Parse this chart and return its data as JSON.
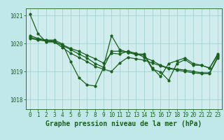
{
  "background_color": "#c0e8e8",
  "plot_bg_color": "#d0ecec",
  "grid_color": "#a0cccc",
  "line_color": "#1a6020",
  "ylim": [
    1017.65,
    1021.25
  ],
  "yticks": [
    1018,
    1019,
    1020,
    1021
  ],
  "xticks": [
    0,
    1,
    2,
    3,
    4,
    5,
    6,
    7,
    8,
    9,
    10,
    11,
    12,
    13,
    14,
    15,
    16,
    17,
    18,
    19,
    20,
    21,
    22,
    23
  ],
  "series": [
    [
      1021.05,
      1020.35,
      1020.05,
      1020.05,
      1019.85,
      1019.65,
      1019.5,
      1019.35,
      1019.18,
      1019.08,
      1019.0,
      1019.3,
      1019.5,
      1019.45,
      1019.4,
      1019.3,
      1019.2,
      1019.1,
      1019.05,
      1019.0,
      1018.95,
      1018.92,
      1018.92,
      1019.48
    ],
    [
      1020.18,
      1020.12,
      1020.08,
      1020.05,
      1019.95,
      1019.82,
      1019.72,
      1019.58,
      1019.45,
      1019.3,
      1019.65,
      1019.62,
      1019.72,
      1019.65,
      1019.5,
      1019.38,
      1019.22,
      1019.12,
      1019.08,
      1019.05,
      1019.0,
      1018.95,
      1018.95,
      1019.52
    ],
    [
      1020.22,
      1020.15,
      1020.1,
      1020.08,
      1019.92,
      1019.78,
      1019.62,
      1019.48,
      1019.28,
      1019.15,
      1020.28,
      1019.78,
      1019.68,
      1019.6,
      1019.58,
      1019.08,
      1018.98,
      1018.68,
      1019.28,
      1019.42,
      1019.22,
      1019.22,
      1019.12,
      1019.58
    ],
    [
      1020.28,
      1020.18,
      1020.12,
      1020.12,
      1019.98,
      1019.35,
      1018.78,
      1018.52,
      1018.48,
      1019.12,
      1019.72,
      1019.72,
      1019.68,
      1019.62,
      1019.62,
      1019.12,
      1018.82,
      1019.28,
      1019.38,
      1019.48,
      1019.28,
      1019.22,
      1019.12,
      1019.62
    ]
  ],
  "marker": "o",
  "markersize": 2.0,
  "linewidth": 0.9,
  "xlabel": "Graphe pression niveau de la mer (hPa)",
  "xlabel_fontsize": 7,
  "tick_fontsize": 5.5,
  "title_color": "#1a6020",
  "tick_color": "#1a6020",
  "xlabel_color": "#1a6020"
}
